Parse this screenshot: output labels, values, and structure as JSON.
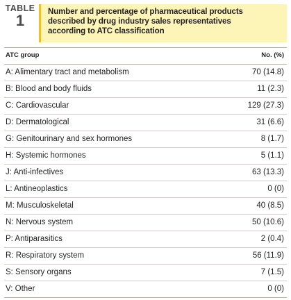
{
  "table": {
    "tag_word": "TABLE",
    "tag_number": "1",
    "caption_lines": [
      "Number and percentage of pharmaceutical products",
      "described by drug industry sales representatives",
      "according to ATC classification"
    ],
    "columns": [
      "ATC group",
      "No. (%)"
    ],
    "rows": [
      {
        "group": "A: Alimentary tract and metabolism",
        "value": "70 (14.8)"
      },
      {
        "group": "B: Blood and body fluids",
        "value": "11 (2.3)"
      },
      {
        "group": "C: Cardiovascular",
        "value": "129 (27.3)"
      },
      {
        "group": "D: Dermatological",
        "value": "31 (6.6)"
      },
      {
        "group": "G: Genitourinary and sex hormones",
        "value": "8 (1.7)"
      },
      {
        "group": "H: Systemic hormones",
        "value": "5 (1.1)"
      },
      {
        "group": "J: Anti-infectives",
        "value": "63 (13.3)"
      },
      {
        "group": "L: Antineoplastics",
        "value": "0 (0)"
      },
      {
        "group": "M: Musculoskeletal",
        "value": "40 (8.5)"
      },
      {
        "group": "N: Nervous system",
        "value": "50 (10.6)"
      },
      {
        "group": "P: Antiparasitics",
        "value": "2 (0.4)"
      },
      {
        "group": "R: Respiratory system",
        "value": "56 (11.9)"
      },
      {
        "group": "S: Sensory organs",
        "value": "7 (1.5)"
      },
      {
        "group": "V: Other",
        "value": "0 (0)"
      }
    ]
  },
  "colors": {
    "caption_background": "#fdf5b8",
    "caption_accent": "#f2c21b",
    "rule": "#b9b3a2"
  }
}
